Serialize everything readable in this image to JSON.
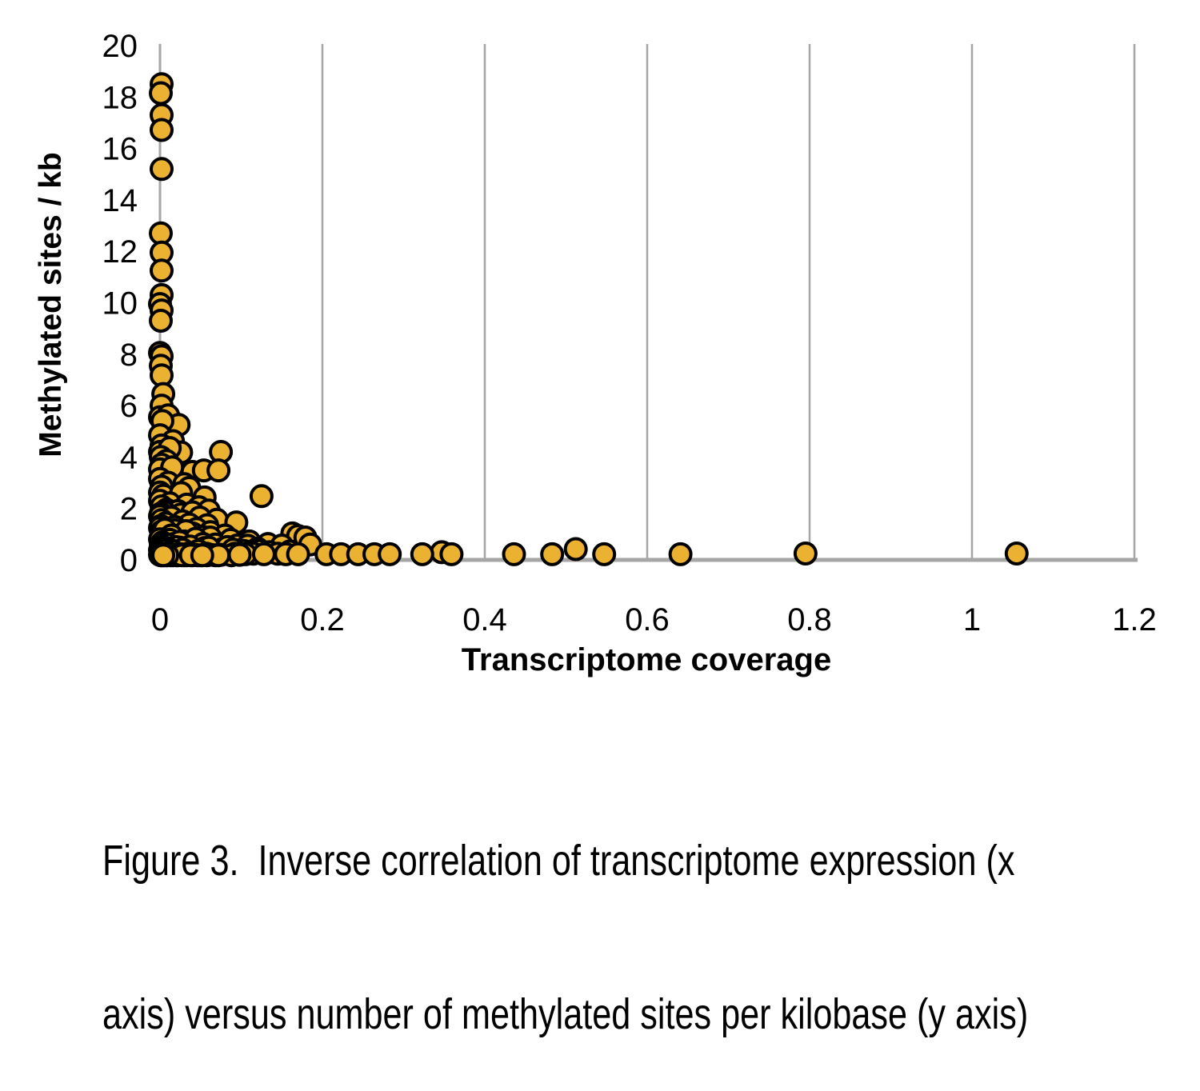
{
  "figure": {
    "caption": {
      "lines": [
        "Figure 3.  Inverse correlation of transcriptome expression (x",
        "axis) versus number of methylated sites per kilobase (y axis)"
      ]
    }
  },
  "chart_data": {
    "type": "scatter",
    "title": "",
    "xlabel": "Transcriptome coverage",
    "ylabel": "Methylated sites / kb",
    "xlim": [
      0,
      1.2
    ],
    "ylim": [
      0,
      20
    ],
    "x_tick_labels": [
      "0",
      "0.2",
      "0.4",
      "0.6",
      "0.8",
      "1",
      "1.2"
    ],
    "x_tick_values": [
      0,
      0.2,
      0.4,
      0.6,
      0.8,
      1,
      1.2
    ],
    "y_tick_labels": [
      "0",
      "2",
      "4",
      "6",
      "8",
      "10",
      "12",
      "14",
      "16",
      "18",
      "20"
    ],
    "y_tick_values": [
      0,
      2,
      4,
      6,
      8,
      10,
      12,
      14,
      16,
      18,
      20
    ],
    "grid": {
      "vertical": true,
      "horizontal": false,
      "color": "#A6A6A6"
    },
    "axis_color": "#A6A6A6",
    "legend": "none",
    "marker": {
      "shape": "circle",
      "fill": "#EBB232",
      "stroke": "#000000"
    },
    "points": [
      [
        0.002,
        18.5
      ],
      [
        0.001,
        18.15
      ],
      [
        0.002,
        17.3
      ],
      [
        0.002,
        16.72
      ],
      [
        0.002,
        15.2
      ],
      [
        0.001,
        12.7
      ],
      [
        0.002,
        11.95
      ],
      [
        0.002,
        11.25
      ],
      [
        0.002,
        10.3
      ],
      [
        0,
        9.95
      ],
      [
        0.002,
        9.7
      ],
      [
        0.001,
        9.3
      ],
      [
        0,
        8.05
      ],
      [
        0.002,
        7.92
      ],
      [
        0.001,
        7.55
      ],
      [
        0.002,
        7.18
      ],
      [
        0.004,
        6.45
      ],
      [
        0.002,
        6.0
      ],
      [
        0,
        5.55
      ],
      [
        0.01,
        5.62
      ],
      [
        0.023,
        5.25
      ],
      [
        0.003,
        5.4
      ],
      [
        0,
        4.85
      ],
      [
        0.016,
        4.62
      ],
      [
        0.002,
        4.45
      ],
      [
        0.026,
        4.18
      ],
      [
        0,
        4.2
      ],
      [
        0.075,
        4.2
      ],
      [
        0.012,
        4.35
      ],
      [
        0.001,
        4.0
      ],
      [
        0.008,
        3.85
      ],
      [
        0.002,
        3.7
      ],
      [
        0,
        3.52
      ],
      [
        0.021,
        3.33
      ],
      [
        0.04,
        3.42
      ],
      [
        0.054,
        3.48
      ],
      [
        0.072,
        3.48
      ],
      [
        0.015,
        3.6
      ],
      [
        0,
        3.15
      ],
      [
        0.01,
        3.0
      ],
      [
        0.03,
        2.95
      ],
      [
        0.002,
        2.85
      ],
      [
        0.036,
        2.8
      ],
      [
        0,
        2.62
      ],
      [
        0.018,
        2.43
      ],
      [
        0.055,
        2.43
      ],
      [
        0.125,
        2.48
      ],
      [
        0.004,
        2.5
      ],
      [
        0.026,
        2.6
      ],
      [
        0,
        2.3
      ],
      [
        0.012,
        2.2
      ],
      [
        0.033,
        2.15
      ],
      [
        0.002,
        2.08
      ],
      [
        0.048,
        2.05
      ],
      [
        0.008,
        1.95
      ],
      [
        0.022,
        1.9
      ],
      [
        0.005,
        1.87
      ],
      [
        0.06,
        1.92
      ],
      [
        0.001,
        1.8
      ],
      [
        0.026,
        1.77
      ],
      [
        0.04,
        1.85
      ],
      [
        0,
        1.7
      ],
      [
        0.014,
        1.65
      ],
      [
        0.049,
        1.65
      ],
      [
        0.07,
        1.56
      ],
      [
        0.002,
        1.55
      ],
      [
        0.028,
        1.5
      ],
      [
        0.094,
        1.46
      ],
      [
        0.007,
        1.42
      ],
      [
        0.036,
        1.38
      ],
      [
        0.001,
        1.32
      ],
      [
        0.058,
        1.35
      ],
      [
        0.018,
        1.28
      ],
      [
        0,
        1.24
      ],
      [
        0.018,
        1.15
      ],
      [
        0.045,
        1.2
      ],
      [
        0.002,
        1.1
      ],
      [
        0.04,
        1.03
      ],
      [
        0.163,
        1.03
      ],
      [
        0.01,
        1.05
      ],
      [
        0.028,
        0.98
      ],
      [
        0.004,
        0.95
      ],
      [
        0.062,
        1.08
      ],
      [
        0.08,
        0.95
      ],
      [
        0.17,
        0.93
      ],
      [
        0.052,
        0.9
      ],
      [
        0.001,
        0.88
      ],
      [
        0.022,
        0.85
      ],
      [
        0.006,
        1.18
      ],
      [
        0.032,
        1.12
      ],
      [
        0.014,
        0.95
      ],
      [
        0.062,
        0.87
      ],
      [
        0.087,
        0.78
      ],
      [
        0.11,
        0.72
      ],
      [
        0.133,
        0.62
      ],
      [
        0.179,
        0.87
      ],
      [
        0,
        0.8
      ],
      [
        0.012,
        0.78
      ],
      [
        0.03,
        0.72
      ],
      [
        0.003,
        0.68
      ],
      [
        0.046,
        0.66
      ],
      [
        0.068,
        0.6
      ],
      [
        0.017,
        0.62
      ],
      [
        0.185,
        0.6
      ],
      [
        0.001,
        0.58
      ],
      [
        0.036,
        0.56
      ],
      [
        0.095,
        0.56
      ],
      [
        0.15,
        0.56
      ],
      [
        0.007,
        0.52
      ],
      [
        0.044,
        0.82
      ],
      [
        0.024,
        0.7
      ],
      [
        0.009,
        0.6
      ],
      [
        0.053,
        0.62
      ],
      [
        0.002,
        0.55
      ],
      [
        0.108,
        0.55
      ],
      [
        0.024,
        0.48
      ],
      [
        0.055,
        0.46
      ],
      [
        0.002,
        0.45
      ],
      [
        0.078,
        0.44
      ],
      [
        0.12,
        0.44
      ],
      [
        0.041,
        0.4
      ],
      [
        0.012,
        0.4
      ],
      [
        0,
        0.38
      ],
      [
        0.064,
        0.36
      ],
      [
        0.103,
        0.35
      ],
      [
        0.16,
        0.33
      ],
      [
        0.029,
        0.33
      ],
      [
        0.006,
        0.32
      ],
      [
        0.048,
        0.3
      ],
      [
        0.086,
        0.3
      ],
      [
        0.135,
        0.3
      ],
      [
        0.018,
        0.3
      ],
      [
        0.001,
        0.28
      ],
      [
        0.07,
        0.27
      ],
      [
        0.019,
        0.5
      ],
      [
        0.037,
        0.52
      ],
      [
        0.011,
        0.42
      ],
      [
        0.06,
        0.48
      ],
      [
        0.028,
        0.4
      ],
      [
        0.083,
        0.5
      ],
      [
        0.005,
        0.35
      ],
      [
        0.047,
        0.35
      ],
      [
        0.016,
        0.33
      ],
      [
        0.09,
        0.4
      ],
      [
        0.122,
        0.35
      ],
      [
        0.512,
        0.42
      ],
      [
        0.347,
        0.3
      ],
      [
        0.035,
        0.25
      ],
      [
        0.01,
        0.25
      ],
      [
        0.057,
        0.24
      ],
      [
        0.092,
        0.24
      ],
      [
        0.115,
        0.24
      ],
      [
        0.145,
        0.24
      ],
      [
        0.003,
        0.22
      ],
      [
        0.025,
        0.22
      ],
      [
        0.043,
        0.2
      ],
      [
        0.075,
        0.2
      ],
      [
        0,
        0.2
      ],
      [
        0.015,
        0.2
      ],
      [
        0.062,
        0.2
      ],
      [
        0.105,
        0.22
      ],
      [
        0.128,
        0.22
      ],
      [
        0.155,
        0.22
      ],
      [
        0.17,
        0.22
      ],
      [
        0.008,
        0.18
      ],
      [
        0.03,
        0.18
      ],
      [
        0.05,
        0.18
      ],
      [
        0.068,
        0.18
      ],
      [
        0.088,
        0.18
      ],
      [
        0.005,
        0.18
      ],
      [
        0.02,
        0.18
      ],
      [
        0.04,
        0.18
      ],
      [
        0.013,
        0.18
      ],
      [
        0.058,
        0.18
      ],
      [
        0.098,
        0.2
      ],
      [
        0.002,
        0.18
      ],
      [
        0.033,
        0.18
      ],
      [
        0.022,
        0.18
      ],
      [
        0.046,
        0.18
      ],
      [
        0.001,
        0.18
      ],
      [
        0.016,
        0.18
      ],
      [
        0.072,
        0.18
      ],
      [
        0.027,
        0.18
      ],
      [
        0.009,
        0.18
      ],
      [
        0.038,
        0.18
      ],
      [
        0.004,
        0.18
      ],
      [
        0.052,
        0.18
      ],
      [
        0.205,
        0.22
      ],
      [
        0.223,
        0.22
      ],
      [
        0.244,
        0.22
      ],
      [
        0.264,
        0.22
      ],
      [
        0.283,
        0.22
      ],
      [
        0.323,
        0.22
      ],
      [
        0.359,
        0.22
      ],
      [
        0.436,
        0.22
      ],
      [
        0.483,
        0.22
      ],
      [
        0.547,
        0.22
      ],
      [
        0.641,
        0.22
      ],
      [
        0.795,
        0.25
      ],
      [
        1.055,
        0.25
      ]
    ]
  }
}
